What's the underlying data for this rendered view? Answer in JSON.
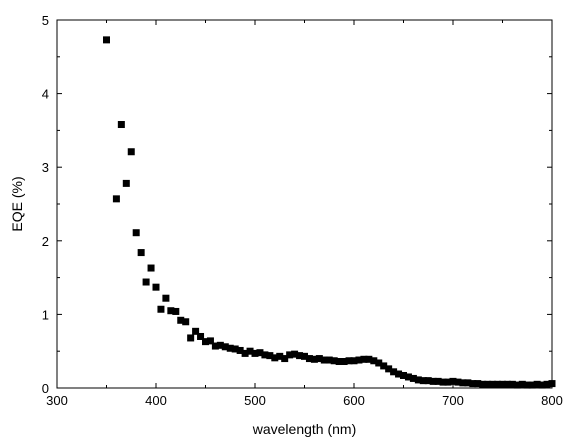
{
  "chart_data": {
    "type": "scatter",
    "xlabel": "wavelength (nm)",
    "ylabel": "EQE (%)",
    "xlim": [
      300,
      800
    ],
    "ylim": [
      0,
      5
    ],
    "xticks": [
      "300",
      "400",
      "500",
      "600",
      "700",
      "800"
    ],
    "yticks": [
      "0",
      "1",
      "2",
      "3",
      "4",
      "5"
    ],
    "grid": false,
    "marker": "square",
    "color": "#000000",
    "series": [
      {
        "x": [
          350,
          360,
          365,
          370,
          375,
          380,
          385,
          390,
          395,
          400,
          405,
          410,
          415,
          420,
          425,
          430,
          435,
          440,
          445,
          450,
          455,
          460,
          465,
          470,
          475,
          480,
          485,
          490,
          495,
          500,
          505,
          510,
          515,
          520,
          525,
          530,
          535,
          540,
          545,
          550,
          555,
          560,
          565,
          570,
          575,
          580,
          585,
          590,
          595,
          600,
          605,
          610,
          615,
          620,
          625,
          630,
          635,
          640,
          645,
          650,
          655,
          660,
          665,
          670,
          675,
          680,
          685,
          690,
          695,
          700,
          705,
          710,
          715,
          720,
          725,
          730,
          735,
          740,
          745,
          750,
          755,
          760,
          765,
          770,
          775,
          780,
          785,
          790,
          795,
          800
        ],
        "y": [
          4.73,
          2.57,
          3.58,
          2.78,
          3.21,
          2.11,
          1.84,
          1.44,
          1.63,
          1.37,
          1.07,
          1.22,
          1.05,
          1.04,
          0.92,
          0.9,
          0.68,
          0.77,
          0.7,
          0.63,
          0.64,
          0.57,
          0.58,
          0.56,
          0.54,
          0.53,
          0.51,
          0.47,
          0.5,
          0.47,
          0.48,
          0.45,
          0.44,
          0.41,
          0.43,
          0.4,
          0.45,
          0.46,
          0.44,
          0.43,
          0.4,
          0.39,
          0.4,
          0.38,
          0.38,
          0.37,
          0.36,
          0.36,
          0.37,
          0.37,
          0.38,
          0.39,
          0.39,
          0.37,
          0.34,
          0.3,
          0.26,
          0.22,
          0.19,
          0.17,
          0.15,
          0.13,
          0.11,
          0.1,
          0.1,
          0.09,
          0.09,
          0.08,
          0.08,
          0.09,
          0.08,
          0.07,
          0.07,
          0.06,
          0.06,
          0.05,
          0.05,
          0.05,
          0.05,
          0.05,
          0.05,
          0.05,
          0.04,
          0.05,
          0.04,
          0.04,
          0.05,
          0.04,
          0.05,
          0.06
        ]
      }
    ]
  }
}
